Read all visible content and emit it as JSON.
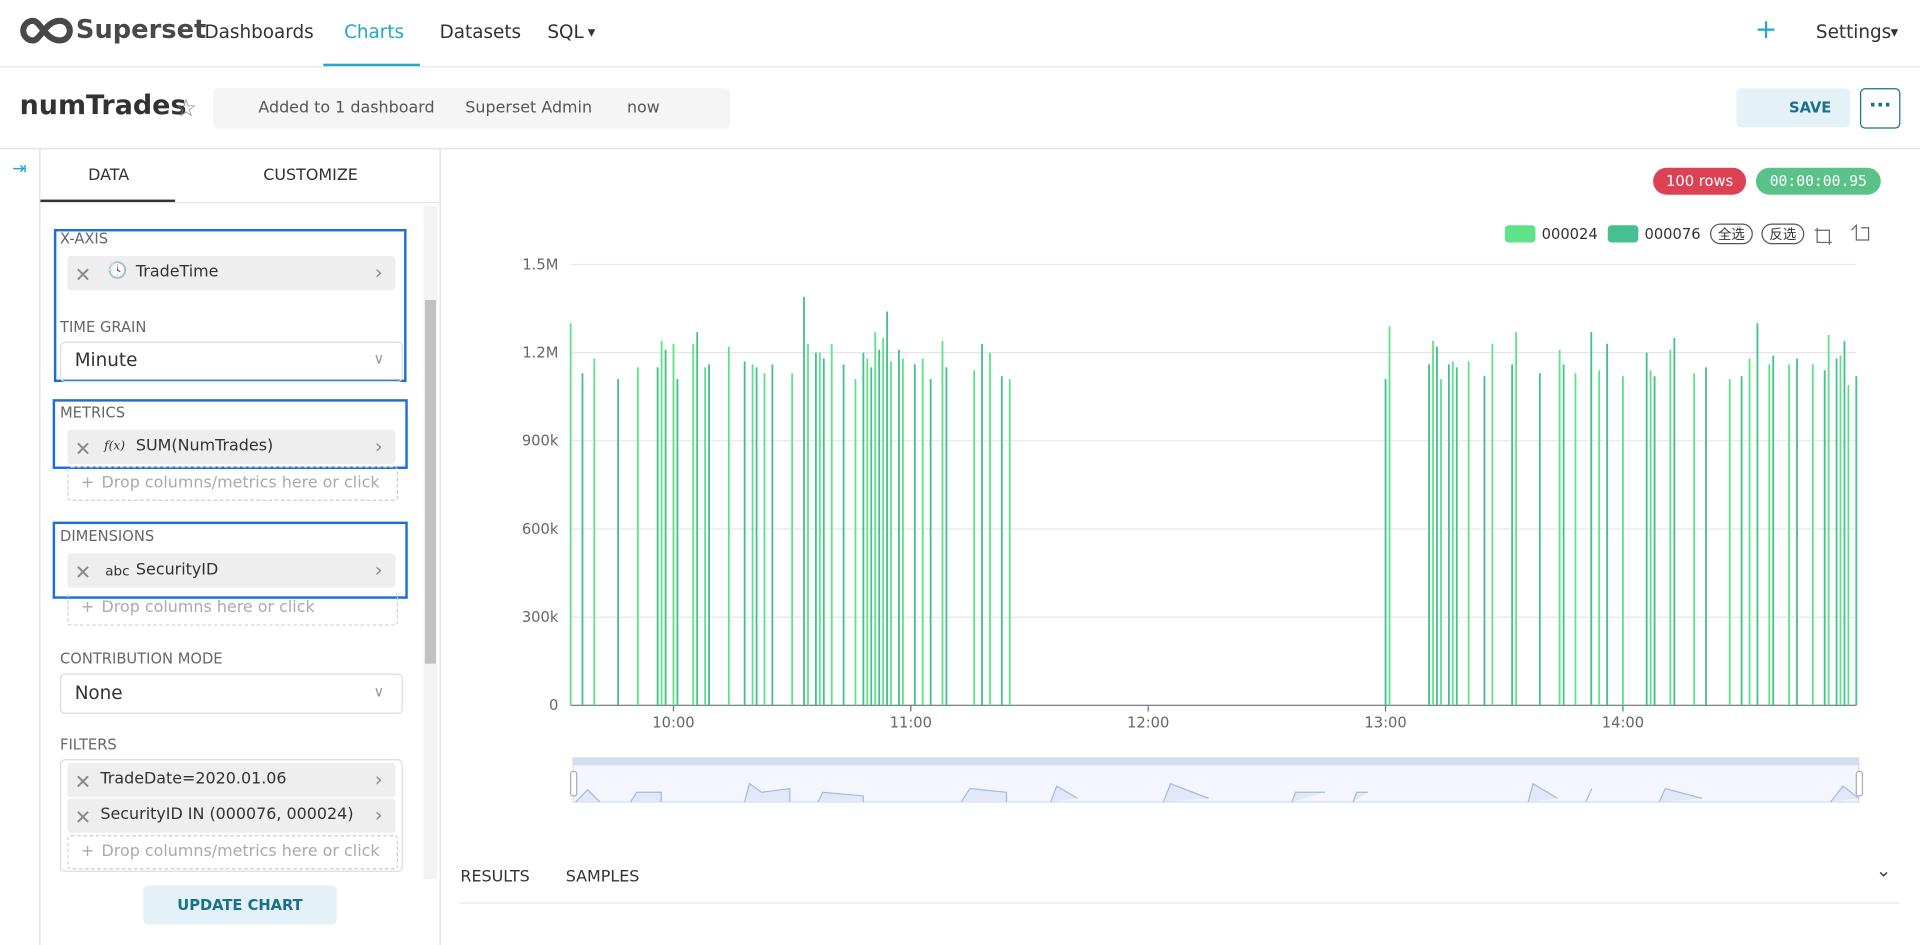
{
  "nav": {
    "brand": "Superset",
    "items": [
      "Dashboards",
      "Charts",
      "Datasets",
      "SQL"
    ],
    "settings": "Settings"
  },
  "header": {
    "title": "numTrades",
    "meta": [
      "Added to 1 dashboard",
      "Superset Admin",
      "now"
    ],
    "save": "SAVE"
  },
  "panel": {
    "tabs": [
      "DATA",
      "CUSTOMIZE"
    ],
    "x_axis": {
      "label": "X-AXIS",
      "value": "TradeTime"
    },
    "time_grain": {
      "label": "TIME GRAIN",
      "value": "Minute"
    },
    "metrics": {
      "label": "METRICS",
      "icon": "f(x)",
      "value": "SUM(NumTrades)",
      "drop": "Drop columns/metrics here or click"
    },
    "dimensions": {
      "label": "DIMENSIONS",
      "icon": "abc",
      "value": "SecurityID",
      "drop": "Drop columns here or click"
    },
    "contribution": {
      "label": "CONTRIBUTION MODE",
      "value": "None"
    },
    "filters": {
      "label": "FILTERS",
      "items": [
        "TradeDate=2020.01.06",
        "SecurityID IN (000076, 000024)"
      ],
      "drop": "Drop columns/metrics here or click"
    },
    "update": "UPDATE CHART"
  },
  "status": {
    "rows": "100 rows",
    "time": "00:00:00.95"
  },
  "chart_data": {
    "type": "bar",
    "legend_buttons": [
      "全选",
      "反选"
    ],
    "x": [
      "09:34",
      "09:37",
      "09:40",
      "09:46",
      "09:51",
      "09:56",
      "09:57",
      "09:58",
      "10:00",
      "10:01",
      "10:05",
      "10:06",
      "10:08",
      "10:09",
      "10:14",
      "10:18",
      "10:20",
      "10:21",
      "10:23",
      "10:25",
      "10:30",
      "10:33",
      "10:34",
      "10:36",
      "10:37",
      "10:38",
      "10:40",
      "10:43",
      "10:46",
      "10:48",
      "10:49",
      "10:50",
      "10:51",
      "10:52",
      "10:53",
      "10:54",
      "10:55",
      "10:57",
      "10:58",
      "11:01",
      "11:03",
      "11:05",
      "11:08",
      "11:09",
      "11:16",
      "11:18",
      "11:20",
      "11:23",
      "11:25",
      "13:00",
      "13:01",
      "13:11",
      "13:12",
      "13:13",
      "13:14",
      "13:16",
      "13:17",
      "13:18",
      "13:21",
      "13:25",
      "13:27",
      "13:32",
      "13:33",
      "13:39",
      "13:44",
      "13:45",
      "13:48",
      "13:52",
      "13:54",
      "13:56",
      "14:00",
      "14:06",
      "14:07",
      "14:08",
      "14:12",
      "14:13",
      "14:18",
      "14:21",
      "14:27",
      "14:30",
      "14:32",
      "14:34",
      "14:37",
      "14:38",
      "14:42",
      "14:44",
      "14:48",
      "14:51",
      "14:52",
      "14:54",
      "14:55",
      "14:56",
      "14:57",
      "14:59"
    ],
    "series": [
      {
        "name": "000024",
        "color": "#5fe38a",
        "values": [
          1300000,
          null,
          1180000,
          null,
          1150000,
          null,
          1240000,
          null,
          1230000,
          null,
          1230000,
          null,
          1150000,
          null,
          1220000,
          null,
          1160000,
          null,
          1130000,
          null,
          1130000,
          null,
          1230000,
          null,
          1200000,
          null,
          1230000,
          null,
          1110000,
          null,
          1180000,
          null,
          1270000,
          null,
          1250000,
          null,
          1170000,
          null,
          1180000,
          null,
          1180000,
          null,
          1240000,
          null,
          1140000,
          null,
          1200000,
          null,
          1110000,
          null,
          1290000,
          null,
          1240000,
          null,
          1110000,
          null,
          1170000,
          null,
          1170000,
          null,
          1230000,
          null,
          1270000,
          null,
          1210000,
          null,
          1130000,
          null,
          1140000,
          null,
          1120000,
          null,
          1140000,
          null,
          1210000,
          null,
          1130000,
          null,
          1110000,
          null,
          1180000,
          null,
          1160000,
          null,
          1160000,
          null,
          1160000,
          null,
          1260000,
          null,
          1190000,
          null,
          1090000,
          null
        ]
      },
      {
        "name": "000076",
        "color": "#45c08e",
        "values": [
          null,
          1130000,
          null,
          1110000,
          null,
          1150000,
          null,
          1210000,
          null,
          1110000,
          null,
          1270000,
          null,
          1160000,
          null,
          1170000,
          null,
          1150000,
          null,
          1160000,
          null,
          1390000,
          null,
          1200000,
          null,
          1180000,
          null,
          1160000,
          null,
          1200000,
          null,
          1150000,
          null,
          1210000,
          null,
          1340000,
          null,
          1210000,
          null,
          1160000,
          null,
          1110000,
          null,
          1150000,
          null,
          1230000,
          null,
          1120000,
          null,
          1110000,
          null,
          1160000,
          null,
          1220000,
          null,
          1160000,
          null,
          1150000,
          null,
          1120000,
          null,
          1160000,
          null,
          1130000,
          null,
          1160000,
          null,
          1270000,
          null,
          1230000,
          null,
          1200000,
          null,
          1120000,
          null,
          1250000,
          null,
          1150000,
          null,
          1120000,
          null,
          1300000,
          null,
          1190000,
          null,
          1180000,
          null,
          1140000,
          null,
          1180000,
          null,
          1240000,
          null,
          1120000
        ]
      }
    ],
    "xlim": [
      "09:34",
      "14:59"
    ],
    "xticks": [
      "10:00",
      "11:00",
      "12:00",
      "13:00",
      "14:00"
    ],
    "ylim": [
      0,
      1500000
    ],
    "yticks": [
      0,
      {
        "value": 300000,
        "label": "300k"
      },
      {
        "value": 600000,
        "label": "600k"
      },
      {
        "value": 900000,
        "label": "900k"
      },
      {
        "value": 1200000,
        "label": "1.2M"
      },
      {
        "value": 1500000,
        "label": "1.5M"
      }
    ],
    "grid": true
  },
  "results": {
    "tabs": [
      "RESULTS",
      "SAMPLES"
    ]
  }
}
